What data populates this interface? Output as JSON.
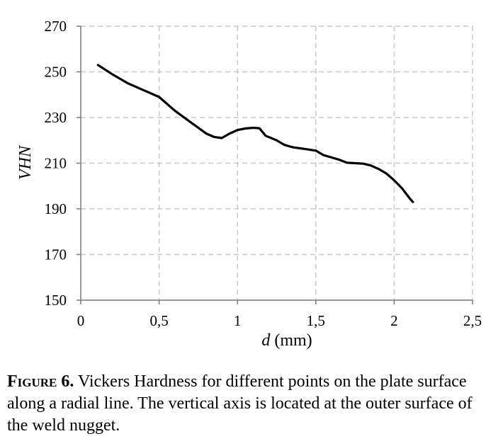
{
  "chart_data": {
    "type": "line",
    "title": "",
    "xlabel_italic": "d",
    "xlabel_rest": " (mm)",
    "ylabel": "VHN",
    "xlim": [
      0,
      2.5
    ],
    "ylim": [
      150,
      270
    ],
    "x_ticks": [
      {
        "value": 0,
        "label": "0"
      },
      {
        "value": 0.5,
        "label": "0,5"
      },
      {
        "value": 1,
        "label": "1"
      },
      {
        "value": 1.5,
        "label": "1,5"
      },
      {
        "value": 2,
        "label": "2"
      },
      {
        "value": 2.5,
        "label": "2,5"
      }
    ],
    "y_ticks": [
      {
        "value": 150,
        "label": "150"
      },
      {
        "value": 170,
        "label": "170"
      },
      {
        "value": 190,
        "label": "190"
      },
      {
        "value": 210,
        "label": "210"
      },
      {
        "value": 230,
        "label": "230"
      },
      {
        "value": 250,
        "label": "250"
      },
      {
        "value": 270,
        "label": "270"
      }
    ],
    "grid": true,
    "grid_style": "dashed",
    "series": [
      {
        "color": "#000000",
        "x": [
          0.11,
          0.2,
          0.3,
          0.4,
          0.5,
          0.6,
          0.7,
          0.8,
          0.85,
          0.9,
          0.95,
          1.0,
          1.05,
          1.1,
          1.14,
          1.18,
          1.25,
          1.3,
          1.35,
          1.4,
          1.45,
          1.5,
          1.55,
          1.6,
          1.65,
          1.7,
          1.75,
          1.8,
          1.85,
          1.9,
          1.95,
          2.0,
          2.05,
          2.1,
          2.12
        ],
        "y": [
          253,
          249,
          245,
          242,
          239,
          233,
          228,
          223,
          221.5,
          221,
          223,
          224.5,
          225.2,
          225.5,
          225.3,
          222,
          220,
          218,
          217,
          216.5,
          216,
          215.5,
          213.5,
          212.5,
          211.5,
          210.2,
          210,
          209.8,
          209,
          207.5,
          205.5,
          202.5,
          199,
          194.5,
          193
        ]
      }
    ]
  },
  "caption": {
    "label": "Figure 6.",
    "text": " Vickers Hardness for different points on the plate surface along a radial line. The vertical axis is located at the outer surface of the weld nugget."
  }
}
